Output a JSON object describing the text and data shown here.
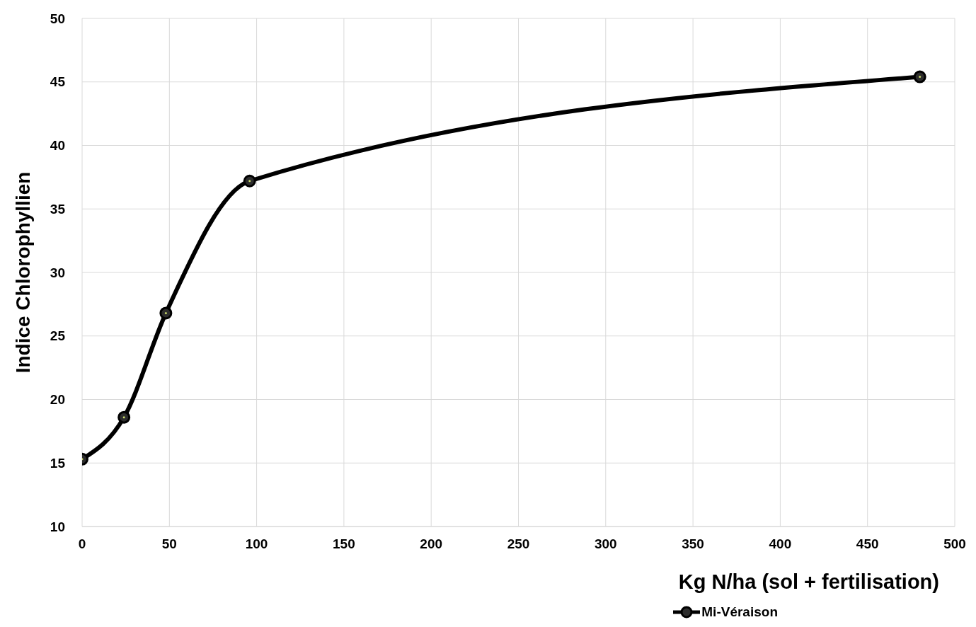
{
  "chart_data": {
    "type": "line",
    "xlabel": "Kg N/ha (sol + fertilisation)",
    "ylabel": "Indice Chlorophyllien",
    "x": [
      0,
      24,
      48,
      96,
      480
    ],
    "series": [
      {
        "name": "Mi-Véraison",
        "color": "#000000",
        "values": [
          15.3,
          18.6,
          26.8,
          37.2,
          45.4
        ]
      }
    ],
    "xlim": [
      0,
      500
    ],
    "xticks": [
      0,
      50,
      100,
      150,
      200,
      250,
      300,
      350,
      400,
      450,
      500
    ],
    "ylim": [
      10,
      50
    ],
    "yticks": [
      10,
      15,
      20,
      25,
      30,
      35,
      40,
      45,
      50
    ],
    "grid": true,
    "legend": "bottom right",
    "marker": "circle",
    "line_style": "solid"
  }
}
